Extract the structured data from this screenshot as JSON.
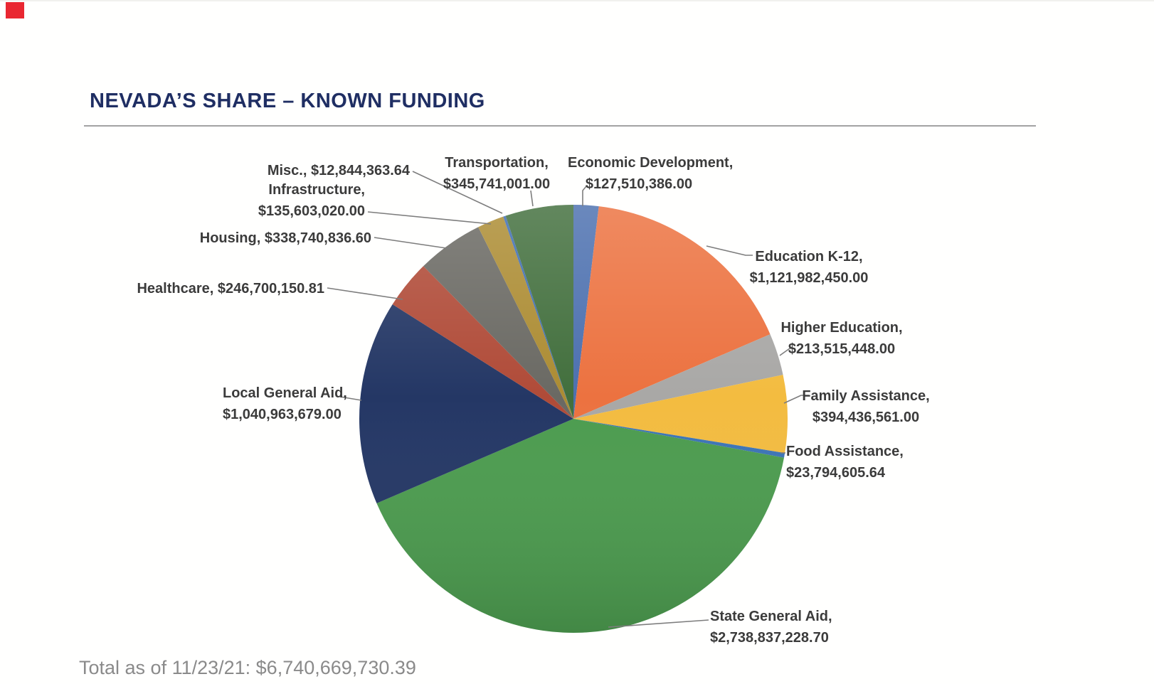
{
  "page": {
    "title": "NEVADA’S SHARE – KNOWN FUNDING",
    "footer": "Total as of 11/23/21: $6,740,669,730.39"
  },
  "colors": {
    "title": "#1f2e63",
    "label_text": "#3b3b3b",
    "total_text": "#8a8a8a",
    "leader_line": "#7d7d7d",
    "corner_mark": "#e92731",
    "rule": "#a3a3a3"
  },
  "chart_data": {
    "type": "pie",
    "title": "NEVADA’S SHARE – KNOWN FUNDING",
    "total_annotation": "Total as of 11/23/21: $6,740,669,730.39",
    "total_value": 6740669730.39,
    "as_of_date": "11/23/21",
    "start_angle_deg": 0,
    "direction": "clockwise",
    "legend_position": "none",
    "labels_style": "outside-with-leader-lines",
    "slices": [
      {
        "slug": "economic-development",
        "name": "Economic Development",
        "value": 127510386.0,
        "value_text": "$127,510,386.00",
        "color": "#4c70af",
        "label_line1": "Economic Development,",
        "label_line2": "$127,510,386.00"
      },
      {
        "slug": "education-k12",
        "name": "Education K-12",
        "value": 1121982450.0,
        "value_text": "$1,121,982,450.00",
        "color": "#ec7240",
        "label_line1": "Education K-12,",
        "label_line2": "$1,121,982,450.00"
      },
      {
        "slug": "higher-education",
        "name": "Higher Education",
        "value": 213515448.0,
        "value_text": "$213,515,448.00",
        "color": "#a9a8a6",
        "label_line1": "Higher Education,",
        "label_line2": "$213,515,448.00"
      },
      {
        "slug": "family-assistance",
        "name": "Family Assistance",
        "value": 394436561.0,
        "value_text": "$394,436,561.00",
        "color": "#f3bc40",
        "label_line1": "Family Assistance,",
        "label_line2": "$394,436,561.00"
      },
      {
        "slug": "food-assistance",
        "name": "Food Assistance",
        "value": 23794605.64,
        "value_text": "$23,794,605.64",
        "color": "#3c74b5",
        "label_line1": "Food Assistance,",
        "label_line2": "$23,794,605.64"
      },
      {
        "slug": "state-general-aid",
        "name": "State General Aid",
        "value": 2738837228.7,
        "value_text": "$2,738,837,228.70",
        "color": "#4c9c4f",
        "label_line1": "State General Aid,",
        "label_line2": "$2,738,837,228.70"
      },
      {
        "slug": "local-general-aid",
        "name": "Local General Aid",
        "value": 1040963679.0,
        "value_text": "$1,040,963,679.00",
        "color": "#243765",
        "label_line1": "Local General Aid,",
        "label_line2": "$1,040,963,679.00"
      },
      {
        "slug": "healthcare",
        "name": "Healthcare",
        "value": 246700150.81,
        "value_text": "$246,700,150.81",
        "color": "#b04b38",
        "label_line1": "Healthcare, $246,700,150.81",
        "label_line2": ""
      },
      {
        "slug": "housing",
        "name": "Housing",
        "value": 338740836.6,
        "value_text": "$338,740,836.60",
        "color": "#6a6963",
        "label_line1": "Housing, $338,740,836.60",
        "label_line2": ""
      },
      {
        "slug": "infrastructure",
        "name": "Infrastructure",
        "value": 135603020.0,
        "value_text": "$135,603,020.00",
        "color": "#ac8c33",
        "label_line1": "Infrastructure,",
        "label_line2": "$135,603,020.00"
      },
      {
        "slug": "misc",
        "name": "Misc.",
        "value": 12844363.64,
        "value_text": "$12,844,363.64",
        "color": "#3f6db2",
        "label_line1": "Misc., $12,844,363.64",
        "label_line2": ""
      },
      {
        "slug": "transportation",
        "name": "Transportation",
        "value": 345741001.0,
        "value_text": "$345,741,001.00",
        "color": "#426f3d",
        "label_line1": "Transportation,",
        "label_line2": "$345,741,001.00"
      }
    ]
  }
}
